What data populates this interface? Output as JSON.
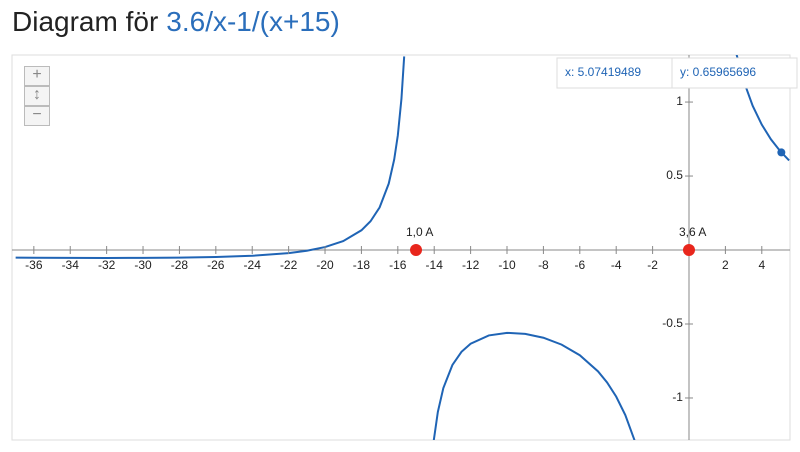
{
  "chart_data": {
    "type": "line",
    "title": "Diagram för",
    "function": "3.6/x-1/(x+15)",
    "xlim": [
      -37.2,
      5.55
    ],
    "ylim": [
      -1.284,
      1.318
    ],
    "xticks": [
      -36,
      -34,
      -32,
      -30,
      -28,
      -26,
      -24,
      -22,
      -20,
      -18,
      -16,
      -14,
      -12,
      -10,
      -8,
      -6,
      -4,
      -2,
      2,
      4
    ],
    "yticks": [
      1,
      0.5,
      -0.5,
      -1
    ],
    "series": [
      {
        "color": "#1f64b5",
        "x": [
          -37,
          -36,
          -34,
          -32,
          -30,
          -28,
          -26,
          -24,
          -22,
          -21,
          -20,
          -19,
          -18,
          -17.5,
          -17,
          -16.5,
          -16.2,
          -16,
          -15.8,
          -15.65,
          -15,
          -14.05,
          -13.8,
          -13.5,
          -13,
          -12.5,
          -12,
          -11,
          -10,
          -9,
          -8,
          -7,
          -6,
          -5,
          -4.5,
          -4,
          -3.5,
          -3,
          -2.95,
          0,
          2.6,
          3,
          3.5,
          4,
          4.5,
          5,
          5.5
        ],
        "values": [
          -0.0518,
          -0.0524,
          -0.0533,
          -0.0537,
          -0.0533,
          -0.0517,
          -0.0476,
          -0.0389,
          -0.0208,
          -0.0048,
          0.02,
          0.0605,
          0.1333,
          0.1943,
          0.2882,
          0.4485,
          0.6111,
          0.775,
          1.0222,
          1.3084,
          null,
          -1.3089,
          -1.0942,
          -0.9333,
          -0.7769,
          -0.688,
          -0.6333,
          -0.5773,
          -0.56,
          -0.5667,
          -0.5929,
          -0.6393,
          -0.7111,
          -0.82,
          -0.8952,
          -0.9909,
          -1.1155,
          -1.2833,
          -1.3033,
          null,
          1.3278,
          1.1444,
          0.9745,
          0.8474,
          0.7487,
          0.67,
          0.6058
        ]
      }
    ],
    "annotations": [
      {
        "label": "1,0 A",
        "x": -15,
        "y": 0,
        "color": "#e8261c"
      },
      {
        "label": "3,6 A",
        "x": 0,
        "y": 0,
        "color": "#e8261c"
      }
    ],
    "cursor": {
      "x": 5.07419489,
      "y": 0.65965696,
      "x_label": "x: 5.07419489",
      "y_label": "y: 0.65965696",
      "color": "#1f64b5"
    }
  }
}
